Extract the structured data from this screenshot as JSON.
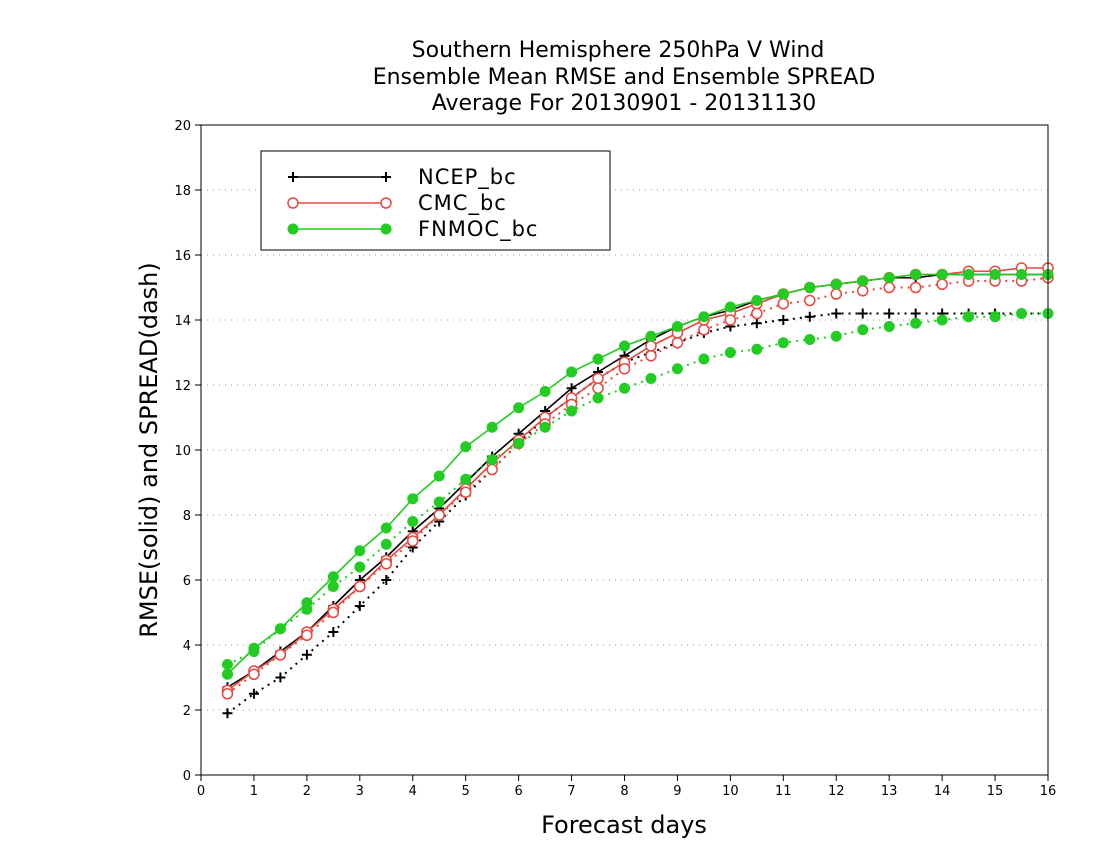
{
  "chart_data": {
    "type": "line",
    "title": [
      "Southern Hemisphere 250hPa V Wind",
      "Ensemble Mean RMSE and Ensemble SPREAD",
      "Average For 20130901 - 20131130"
    ],
    "xlabel": "Forecast days",
    "ylabel": "RMSE(solid) and SPREAD(dash)",
    "xlim": [
      0,
      16
    ],
    "ylim": [
      0,
      20
    ],
    "xticks": [
      "0",
      "1",
      "2",
      "3",
      "4",
      "5",
      "6",
      "7",
      "8",
      "9",
      "10",
      "11",
      "12",
      "13",
      "14",
      "15",
      "16"
    ],
    "yticks": [
      "0",
      "2",
      "4",
      "6",
      "8",
      "10",
      "12",
      "14",
      "16",
      "18",
      "20"
    ],
    "grid": "horizontal dotted",
    "legend_position": "top-left",
    "x": [
      0.5,
      1,
      1.5,
      2,
      2.5,
      3,
      3.5,
      4,
      4.5,
      5,
      5.5,
      6,
      6.5,
      7,
      7.5,
      8,
      8.5,
      9,
      9.5,
      10,
      10.5,
      11,
      11.5,
      12,
      12.5,
      13,
      13.5,
      14,
      14.5,
      15,
      15.5,
      16
    ],
    "series": [
      {
        "name": "NCEP_bc",
        "color": "#000000",
        "marker": "plus",
        "rmse": [
          2.7,
          3.2,
          3.8,
          4.4,
          5.2,
          6.0,
          6.7,
          7.5,
          8.2,
          9.0,
          9.8,
          10.5,
          11.2,
          11.9,
          12.4,
          12.9,
          13.4,
          13.8,
          14.1,
          14.3,
          14.6,
          14.8,
          15.0,
          15.1,
          15.2,
          15.3,
          15.3,
          15.4,
          15.4,
          15.4,
          15.4,
          15.4
        ],
        "spread": [
          1.9,
          2.5,
          3.0,
          3.7,
          4.4,
          5.2,
          6.0,
          7.0,
          7.8,
          8.6,
          9.4,
          10.2,
          11.0,
          11.6,
          12.2,
          12.7,
          13.0,
          13.3,
          13.6,
          13.8,
          13.9,
          14.0,
          14.1,
          14.2,
          14.2,
          14.2,
          14.2,
          14.2,
          14.2,
          14.2,
          14.2,
          14.2
        ]
      },
      {
        "name": "CMC_bc",
        "color": "#e8473f",
        "marker": "open-circle",
        "rmse": [
          2.6,
          3.2,
          3.7,
          4.4,
          5.1,
          5.8,
          6.6,
          7.3,
          8.0,
          8.8,
          9.6,
          10.3,
          11.0,
          11.6,
          12.2,
          12.7,
          13.2,
          13.6,
          14.0,
          14.2,
          14.5,
          14.8,
          15.0,
          15.1,
          15.2,
          15.3,
          15.4,
          15.4,
          15.5,
          15.5,
          15.6,
          15.6
        ],
        "spread": [
          2.5,
          3.1,
          3.7,
          4.3,
          5.0,
          5.8,
          6.5,
          7.2,
          8.0,
          8.7,
          9.4,
          10.2,
          10.8,
          11.4,
          11.9,
          12.5,
          12.9,
          13.3,
          13.7,
          14.0,
          14.2,
          14.5,
          14.6,
          14.8,
          14.9,
          15.0,
          15.0,
          15.1,
          15.2,
          15.2,
          15.2,
          15.3
        ]
      },
      {
        "name": "FNMOC_bc",
        "color": "#22cc22",
        "marker": "filled-circle",
        "rmse": [
          3.1,
          3.9,
          4.5,
          5.3,
          6.1,
          6.9,
          7.6,
          8.5,
          9.2,
          10.1,
          10.7,
          11.3,
          11.8,
          12.4,
          12.8,
          13.2,
          13.5,
          13.8,
          14.1,
          14.4,
          14.6,
          14.8,
          15.0,
          15.1,
          15.2,
          15.3,
          15.4,
          15.4,
          15.4,
          15.4,
          15.4,
          15.4
        ],
        "spread": [
          3.4,
          3.8,
          4.5,
          5.1,
          5.8,
          6.4,
          7.1,
          7.8,
          8.4,
          9.1,
          9.7,
          10.2,
          10.7,
          11.2,
          11.6,
          11.9,
          12.2,
          12.5,
          12.8,
          13.0,
          13.1,
          13.3,
          13.4,
          13.5,
          13.7,
          13.8,
          13.9,
          14.0,
          14.1,
          14.1,
          14.2,
          14.2
        ]
      }
    ]
  }
}
